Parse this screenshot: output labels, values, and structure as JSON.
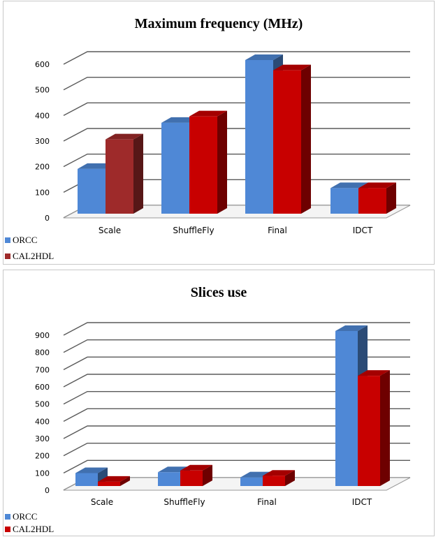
{
  "colors": {
    "orcc": "#4f88d6",
    "cal2hdl": "#c80000",
    "cal2hdl_scale_top": "#9e2a2a",
    "grid": "#5a5a5a"
  },
  "chart_data": [
    {
      "type": "bar",
      "title": "Maximum frequency  (MHz)",
      "categories": [
        "Scale",
        "ShuffleFly",
        "Final",
        "IDCT"
      ],
      "series": [
        {
          "name": "ORCC",
          "values": [
            175,
            355,
            600,
            100
          ]
        },
        {
          "name": "CAL2HDL",
          "values": [
            290,
            380,
            560,
            100
          ]
        }
      ],
      "yticks": [
        "0",
        "100",
        "200",
        "300",
        "400",
        "500",
        "600"
      ],
      "ylim": [
        0,
        600
      ],
      "legend_position": "bottom-left",
      "grid": true
    },
    {
      "type": "bar",
      "title": "Slices use",
      "categories": [
        "Scale",
        "ShuffleFly",
        "Final",
        "IDCT"
      ],
      "series": [
        {
          "name": "ORCC",
          "values": [
            75,
            80,
            50,
            900
          ]
        },
        {
          "name": "CAL2HDL",
          "values": [
            25,
            90,
            60,
            640
          ]
        }
      ],
      "yticks": [
        "0",
        "100",
        "200",
        "300",
        "400",
        "500",
        "600",
        "700",
        "800",
        "900"
      ],
      "ylim": [
        0,
        900
      ],
      "legend_position": "bottom-left",
      "grid": true
    }
  ]
}
